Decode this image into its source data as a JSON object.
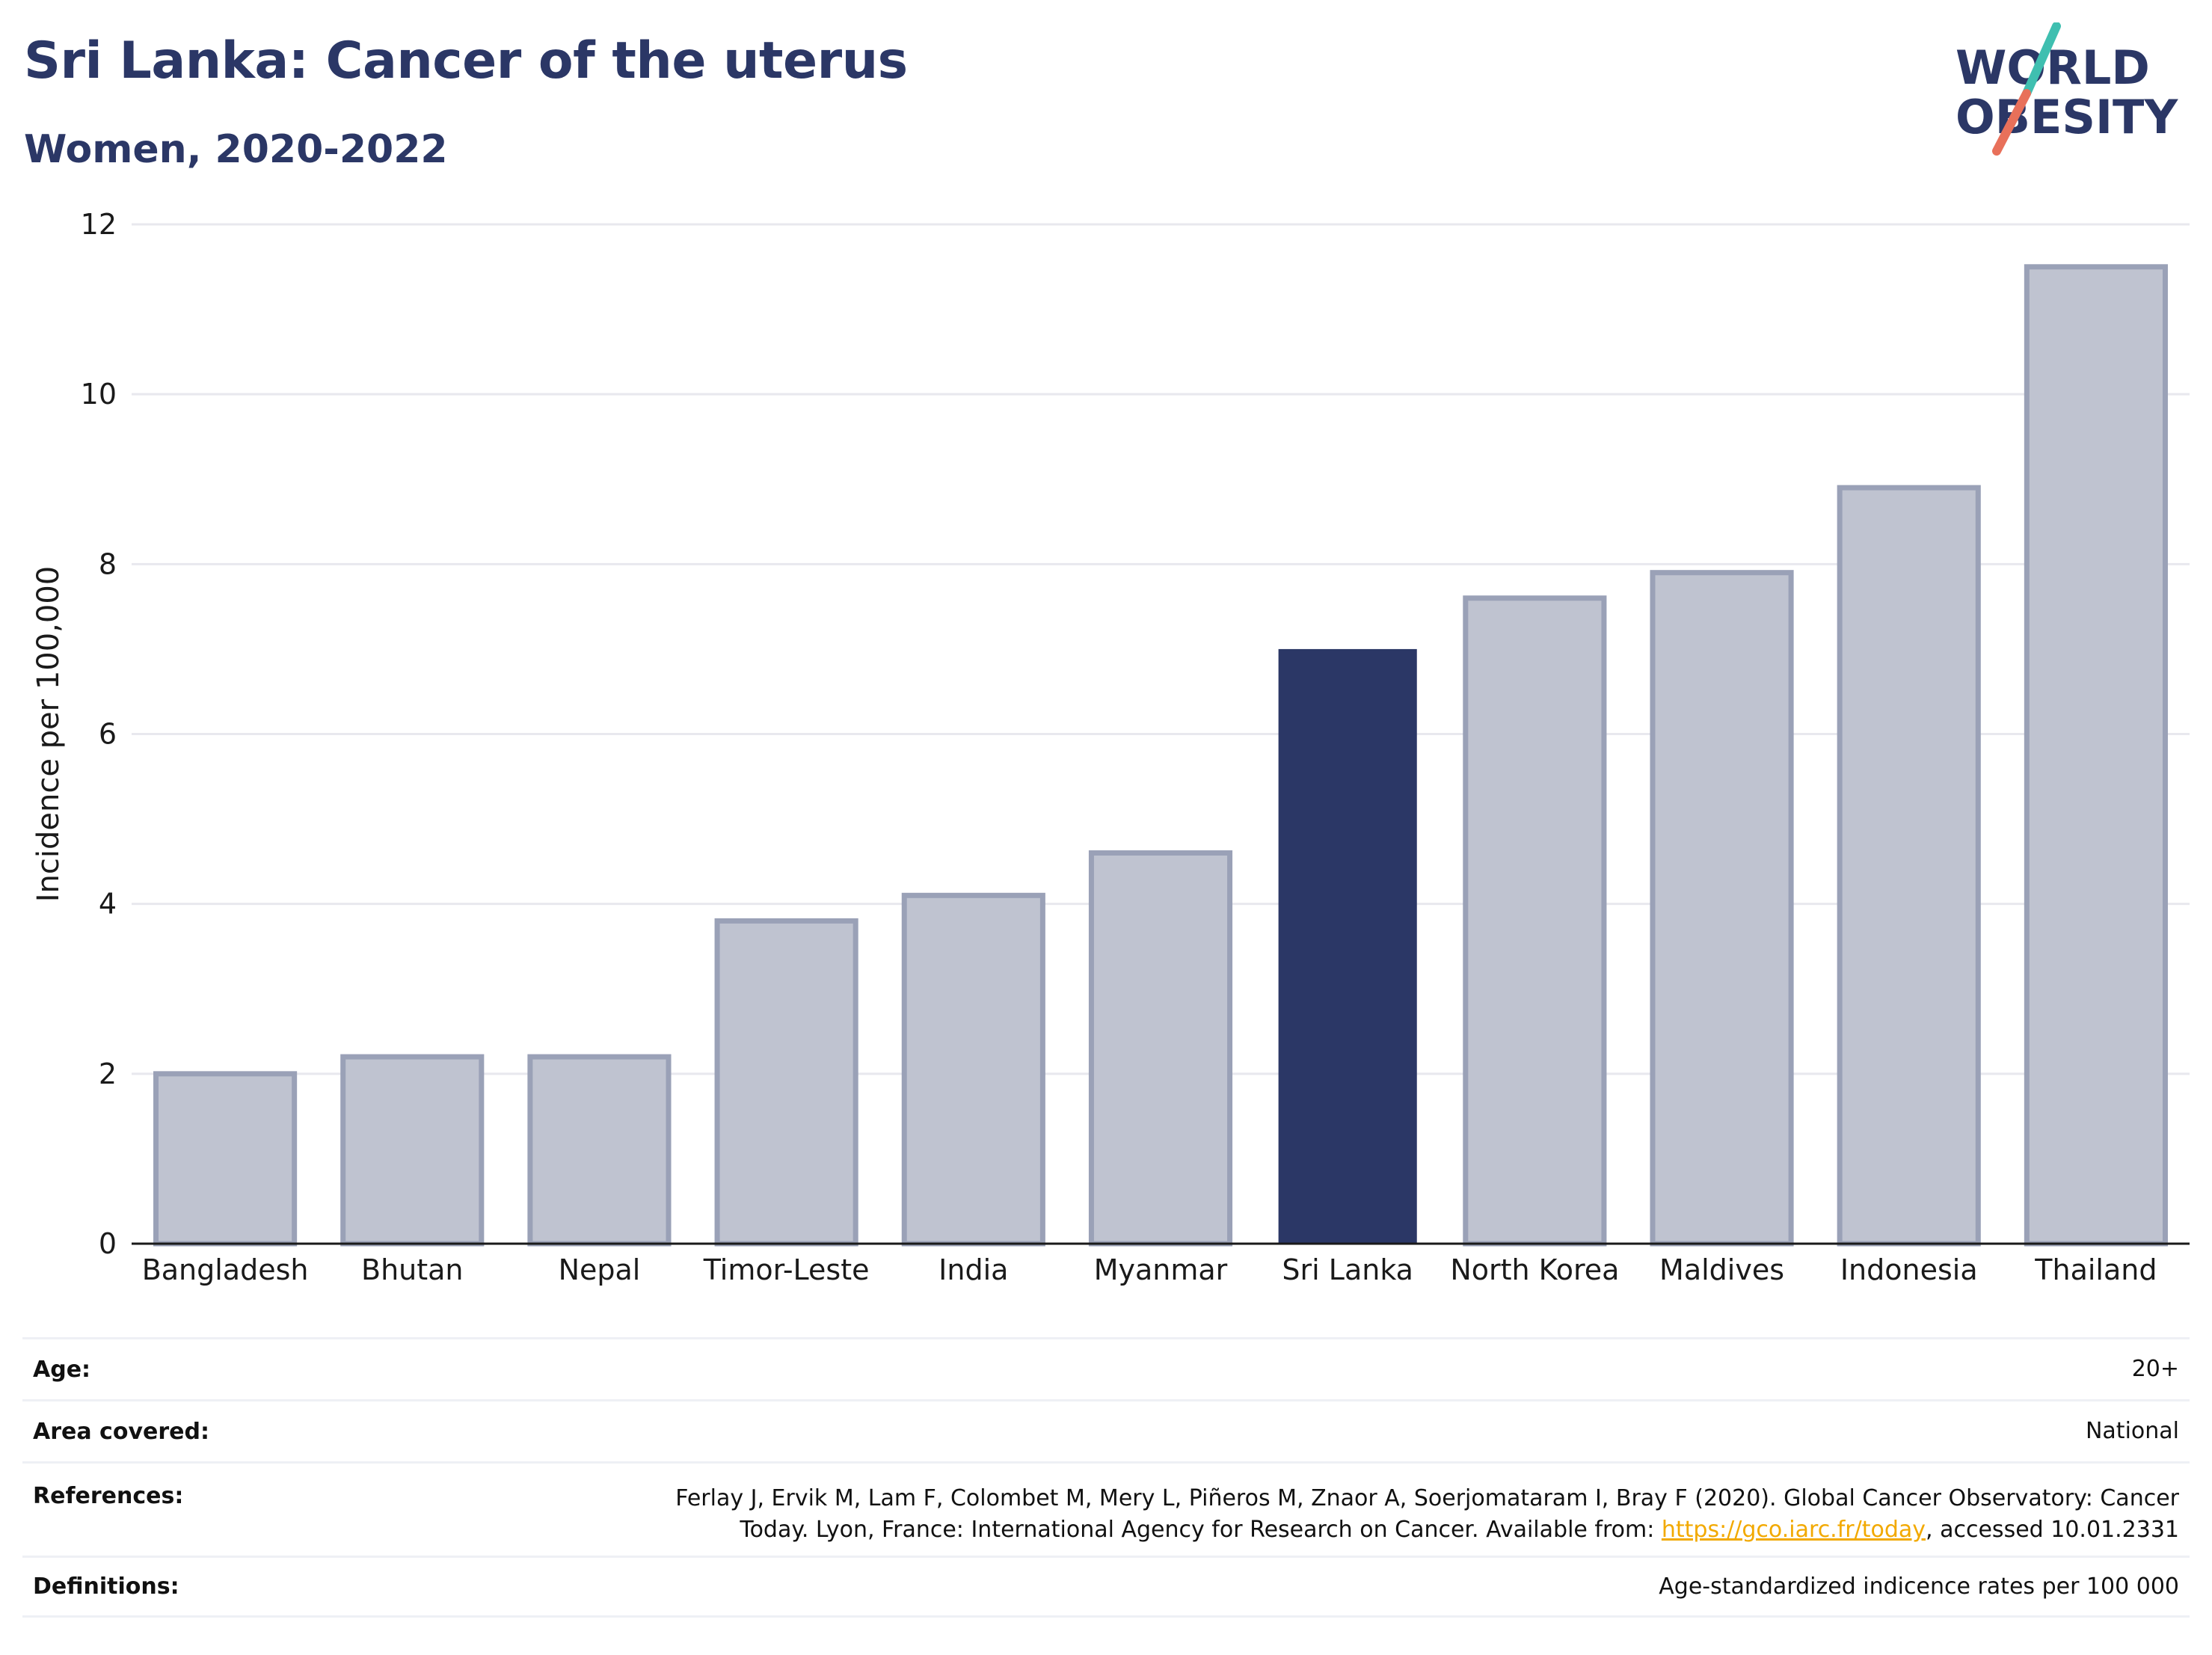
{
  "header": {
    "title": "Sri Lanka: Cancer of the uterus",
    "subtitle": "Women, 2020-2022"
  },
  "logo": {
    "line1": "WORLD",
    "line2": "OBESITY",
    "colors": {
      "text": "#2b3766",
      "slash_top": "#3fbfb0",
      "slash_bottom": "#e8705a"
    }
  },
  "colors": {
    "bar_default_fill": "#bfc3d0",
    "bar_default_stroke": "#9aa1b7",
    "bar_highlight": "#2b3766",
    "gridline": "#e8e8ee",
    "axis": "#1a1a1a"
  },
  "chart_data": {
    "type": "bar",
    "categories": [
      "Bangladesh",
      "Bhutan",
      "Nepal",
      "Timor-Leste",
      "India",
      "Myanmar",
      "Sri Lanka",
      "North Korea",
      "Maldives",
      "Indonesia",
      "Thailand"
    ],
    "values": [
      2.0,
      2.2,
      2.2,
      3.8,
      4.1,
      4.6,
      7.0,
      7.6,
      7.9,
      8.9,
      11.5
    ],
    "highlight": "Sri Lanka",
    "ylabel": "Incidence per 100,000",
    "xlabel": "",
    "ylim": [
      0,
      12
    ],
    "yticks": [
      0,
      2,
      4,
      6,
      8,
      10,
      12
    ],
    "grid": true,
    "legend": "none"
  },
  "meta": {
    "age": {
      "label": "Age:",
      "value": "20+"
    },
    "area": {
      "label": "Area covered:",
      "value": "National"
    },
    "references": {
      "label": "References:",
      "line1": "Ferlay J, Ervik M, Lam F, Colombet M, Mery L, Piñeros M, Znaor A, Soerjomataram I, Bray F (2020). Global Cancer Observatory: Cancer",
      "line2_pre": "Today. Lyon, France: International Agency for Research on Cancer. Available from: ",
      "link": "https://gco.iarc.fr/today",
      "line2_post": ", accessed 10.01.2331"
    },
    "definitions": {
      "label": "Definitions:",
      "value": "Age-standardized indicence rates per 100 000"
    }
  }
}
